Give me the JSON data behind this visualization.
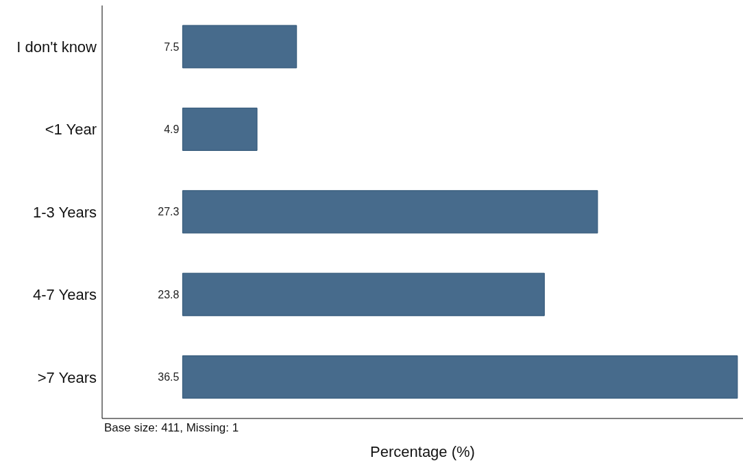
{
  "chart_data": {
    "type": "bar",
    "orientation": "horizontal",
    "categories": [
      "I don't know",
      "<1 Year",
      "1-3 Years",
      "4-7 Years",
      ">7 Years"
    ],
    "values": [
      7.5,
      4.9,
      27.3,
      23.8,
      36.5
    ],
    "color": "#476b8c",
    "data_labels": true,
    "xlabel": "Percentage (%)",
    "annotations": [
      "Base size: 411, Missing: 1"
    ],
    "tick_labels": "y",
    "grid": false,
    "legend": false
  }
}
